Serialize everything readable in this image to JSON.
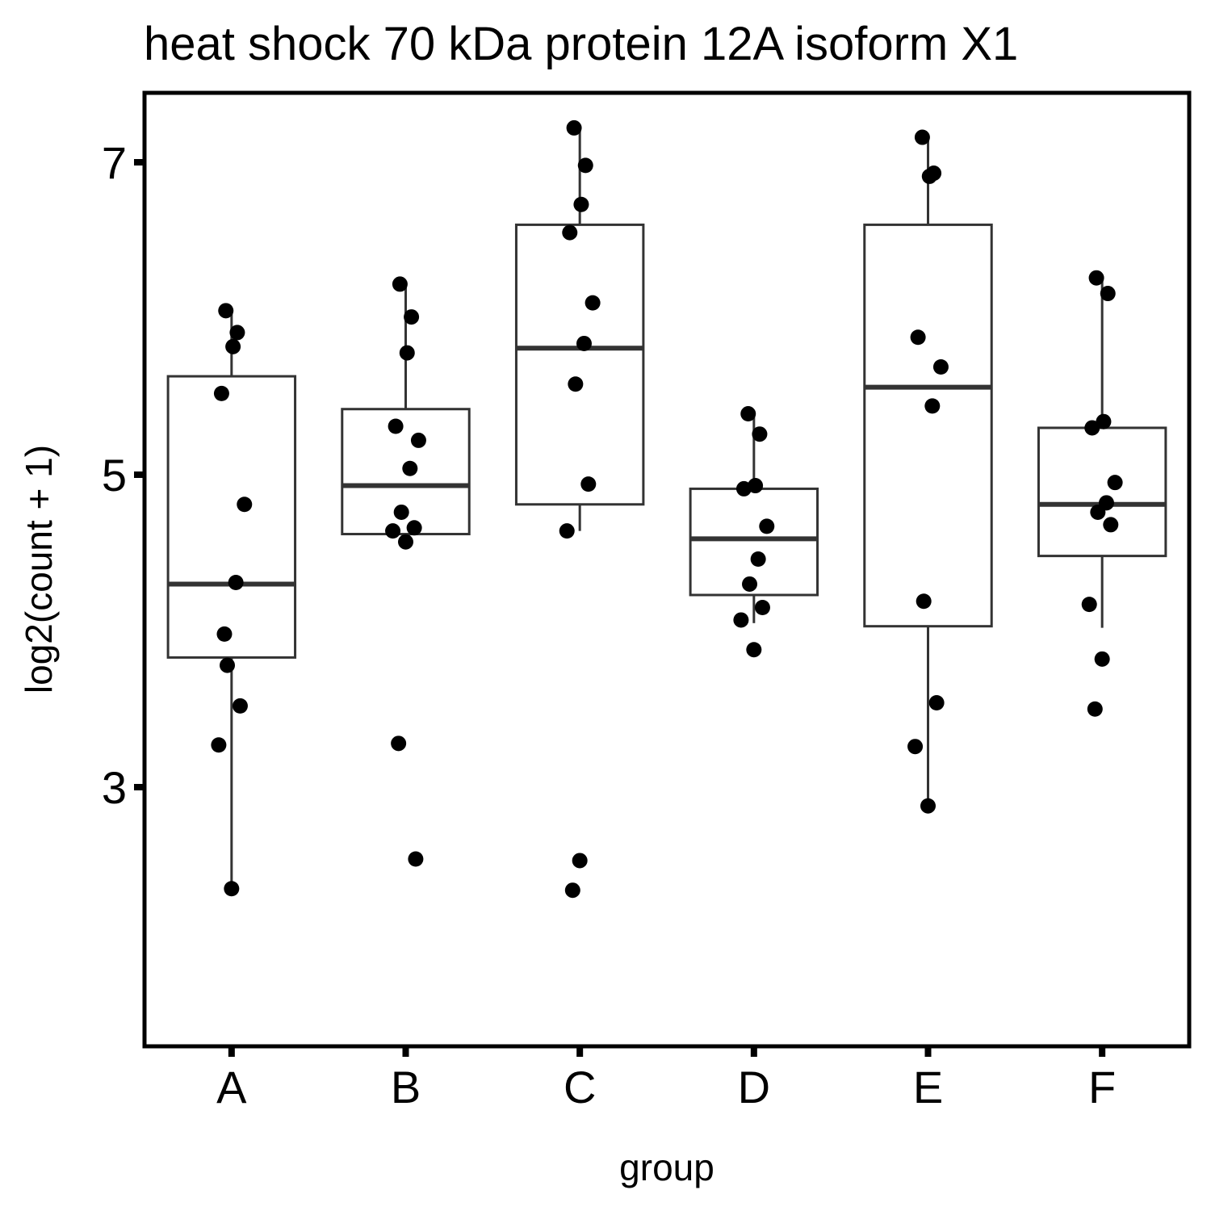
{
  "chart_data": {
    "type": "box",
    "title": "heat shock 70 kDa protein 12A isoform X1",
    "xlabel": "group",
    "ylabel": "log2(count + 1)",
    "categories": [
      "A",
      "B",
      "C",
      "D",
      "E",
      "F"
    ],
    "ylim": [
      1.95,
      7.55
    ],
    "yticks": [
      3,
      5,
      7
    ],
    "grid": false,
    "legend": "none",
    "colors": {
      "box_stroke": "#333333",
      "point": "#000000",
      "frame": "#000000",
      "background": "#ffffff"
    },
    "boxes": [
      {
        "group": "A",
        "q1": 3.83,
        "median": 4.3,
        "q3": 5.63,
        "whisker_low": 2.35,
        "whisker_high": 6.05
      },
      {
        "group": "B",
        "q1": 4.62,
        "median": 4.93,
        "q3": 5.42,
        "whisker_low": 4.55,
        "whisker_high": 6.22
      },
      {
        "group": "C",
        "q1": 4.81,
        "median": 5.81,
        "q3": 6.6,
        "whisker_low": 4.64,
        "whisker_high": 7.22
      },
      {
        "group": "D",
        "q1": 4.23,
        "median": 4.59,
        "q3": 4.91,
        "whisker_low": 4.05,
        "whisker_high": 5.39
      },
      {
        "group": "E",
        "q1": 4.03,
        "median": 5.56,
        "q3": 6.6,
        "whisker_low": 2.88,
        "whisker_high": 7.15
      },
      {
        "group": "F",
        "q1": 4.48,
        "median": 4.81,
        "q3": 5.3,
        "whisker_low": 4.02,
        "whisker_high": 6.25
      }
    ],
    "points": [
      {
        "group": "A",
        "values": [
          6.05,
          5.91,
          5.82,
          5.52,
          4.81,
          4.31,
          3.78,
          3.52,
          3.27,
          2.35,
          3.98
        ]
      },
      {
        "group": "B",
        "values": [
          6.22,
          6.01,
          5.78,
          5.31,
          5.22,
          5.04,
          4.76,
          4.66,
          4.64,
          4.57,
          3.28,
          2.54
        ]
      },
      {
        "group": "C",
        "values": [
          7.22,
          6.98,
          6.73,
          6.55,
          6.1,
          5.84,
          5.58,
          4.94,
          4.64,
          2.53,
          2.34
        ]
      },
      {
        "group": "D",
        "values": [
          5.39,
          5.26,
          4.93,
          4.91,
          4.67,
          4.46,
          4.3,
          4.15,
          4.07,
          3.88
        ]
      },
      {
        "group": "E",
        "values": [
          7.16,
          6.93,
          6.91,
          5.88,
          5.69,
          5.44,
          4.19,
          3.54,
          3.26,
          2.88
        ]
      },
      {
        "group": "F",
        "values": [
          6.26,
          6.16,
          5.34,
          5.3,
          4.95,
          4.82,
          4.76,
          4.68,
          4.17,
          3.82,
          3.5
        ]
      }
    ]
  }
}
